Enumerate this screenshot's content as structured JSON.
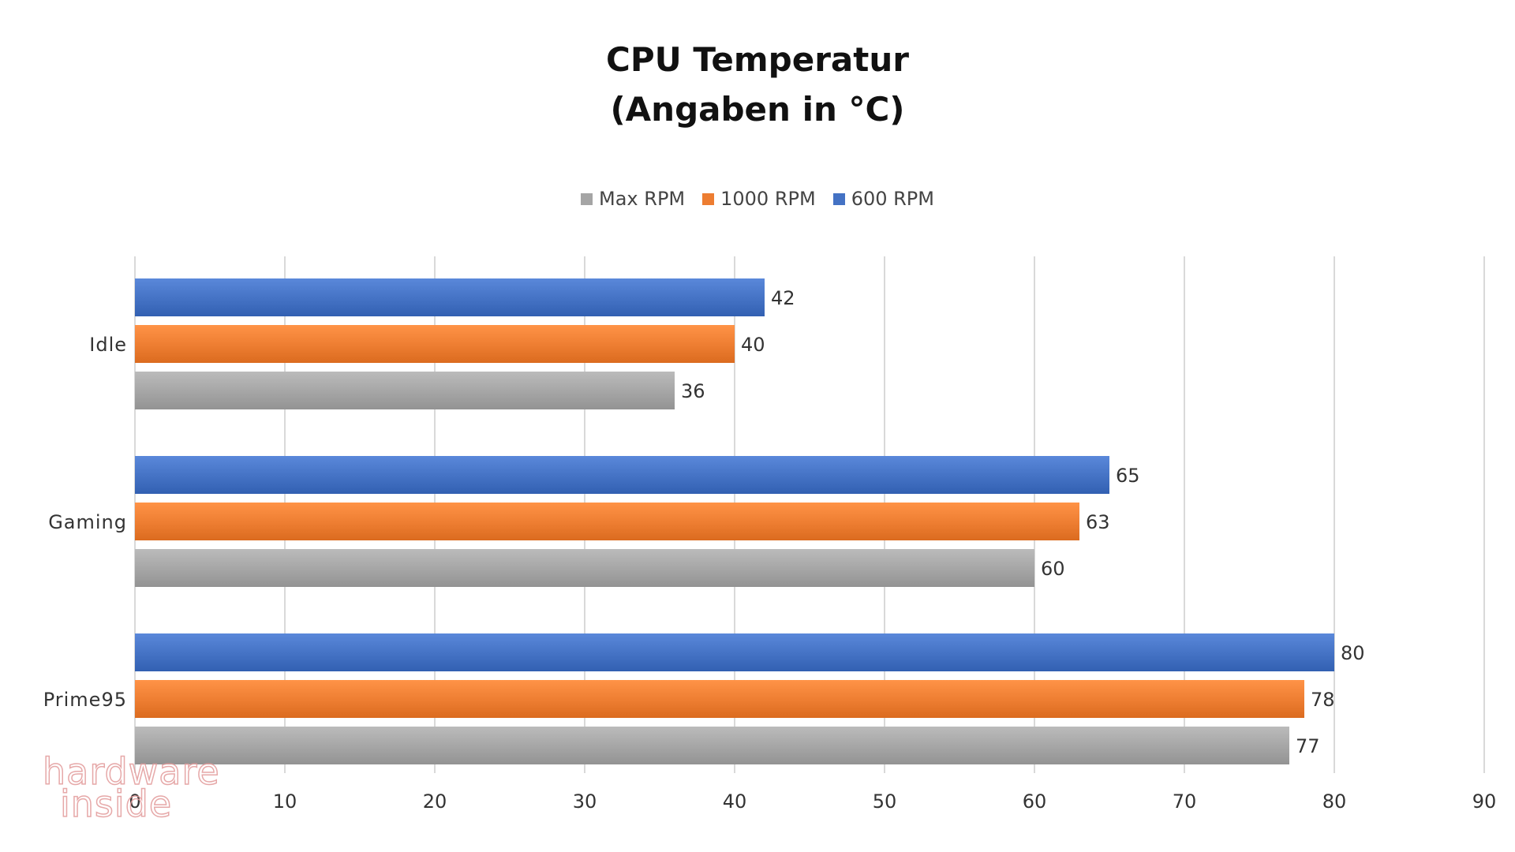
{
  "chart_data": {
    "type": "bar",
    "orientation": "horizontal",
    "title": [
      "CPU Temperatur",
      "(Angaben in °C)"
    ],
    "categories": [
      "Idle",
      "Gaming",
      "Prime95"
    ],
    "series": [
      {
        "name": "600 RPM",
        "color": "#4472c4",
        "values": [
          42,
          65,
          80
        ]
      },
      {
        "name": "1000 RPM",
        "color": "#ed7d31",
        "values": [
          40,
          63,
          78
        ]
      },
      {
        "name": "Max RPM",
        "color": "#a5a5a5",
        "values": [
          36,
          60,
          77
        ]
      }
    ],
    "legend_order": [
      "Max RPM",
      "1000 RPM",
      "600 RPM"
    ],
    "xlim": [
      0,
      90
    ],
    "xticks": [
      0,
      10,
      20,
      30,
      40,
      50,
      60,
      70,
      80,
      90
    ],
    "grid": true,
    "data_labels": true,
    "legend_position": "top-center"
  },
  "watermark": {
    "line1": "hardware",
    "line2": "inside"
  }
}
